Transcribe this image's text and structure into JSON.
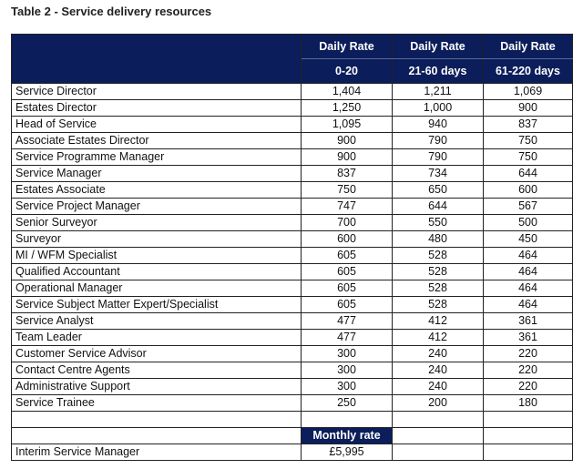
{
  "title": "Table 2 - Service delivery resources",
  "table": {
    "header": [
      {
        "line1": "Daily Rate",
        "line2": "0-20"
      },
      {
        "line1": "Daily Rate",
        "line2": "21-60 days"
      },
      {
        "line1": "Daily Rate",
        "line2": "61-220 days"
      }
    ],
    "rows": [
      [
        "Service Director",
        "1,404",
        "1,211",
        "1,069"
      ],
      [
        "Estates Director",
        "1,250",
        "1,000",
        "900"
      ],
      [
        "Head of Service",
        "1,095",
        "940",
        "837"
      ],
      [
        "Associate Estates Director",
        "900",
        "790",
        "750"
      ],
      [
        "Service Programme Manager",
        "900",
        "790",
        "750"
      ],
      [
        "Service Manager",
        "837",
        "734",
        "644"
      ],
      [
        "Estates Associate",
        "750",
        "650",
        "600"
      ],
      [
        "Service Project Manager",
        "747",
        "644",
        "567"
      ],
      [
        "Senior Surveyor",
        "700",
        "550",
        "500"
      ],
      [
        "Surveyor",
        "600",
        "480",
        "450"
      ],
      [
        "MI / WFM Specialist",
        "605",
        "528",
        "464"
      ],
      [
        "Qualified Accountant",
        "605",
        "528",
        "464"
      ],
      [
        "Operational Manager",
        "605",
        "528",
        "464"
      ],
      [
        "Service Subject Matter Expert/Specialist",
        "605",
        "528",
        "464"
      ],
      [
        "Service Analyst",
        "477",
        "412",
        "361"
      ],
      [
        "Team Leader",
        "477",
        "412",
        "361"
      ],
      [
        "Customer Service Advisor",
        "300",
        "240",
        "220"
      ],
      [
        "Contact Centre Agents",
        "300",
        "240",
        "220"
      ],
      [
        "Administrative Support",
        "300",
        "240",
        "220"
      ],
      [
        "Service Trainee",
        "250",
        "200",
        "180"
      ]
    ],
    "monthly_header": "Monthly rate",
    "monthly_row": [
      "Interim Service Manager",
      "£5,995"
    ]
  }
}
